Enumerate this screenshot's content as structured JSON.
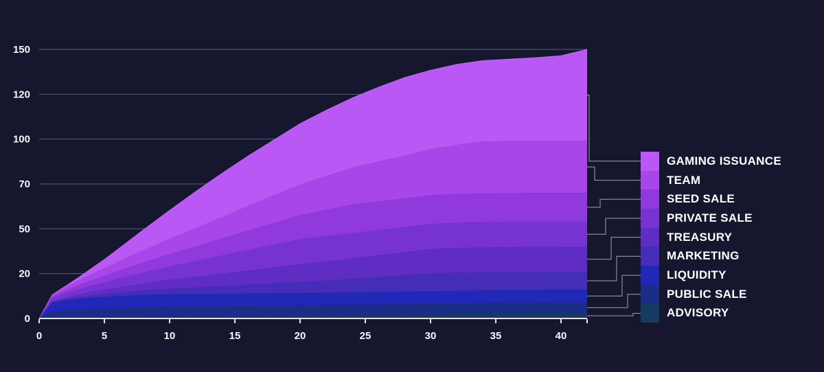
{
  "chart_data": {
    "type": "area",
    "stacked": true,
    "title": "",
    "xlabel": "",
    "ylabel": "",
    "ylim": [
      0,
      150
    ],
    "xlim": [
      0,
      42
    ],
    "grid": true,
    "legend_position": "right",
    "x": [
      0,
      1,
      2,
      3,
      4,
      5,
      6,
      8,
      10,
      12,
      14,
      16,
      18,
      20,
      22,
      24,
      26,
      28,
      30,
      32,
      34,
      36,
      38,
      40,
      42
    ],
    "x_tick_labels": [
      "0",
      "5",
      "10",
      "15",
      "20",
      "25",
      "30",
      "35",
      "40"
    ],
    "x_tick_values": [
      0,
      5,
      10,
      15,
      20,
      25,
      30,
      35,
      40
    ],
    "y_tick_labels_top_to_bottom": [
      "150",
      "120",
      "100",
      "70",
      "50",
      "20",
      "0"
    ],
    "series_bottom_to_top": [
      {
        "name": "ADVISORY",
        "color": "#173a63",
        "values": [
          0,
          0.05,
          0.1,
          0.15,
          0.2,
          0.25,
          0.3,
          0.4,
          0.5,
          0.6,
          0.7,
          0.85,
          1,
          1.15,
          1.3,
          1.5,
          1.7,
          1.9,
          2.1,
          2.35,
          2.6,
          2.8,
          2.9,
          3,
          3
        ]
      },
      {
        "name": "PUBLIC SALE",
        "color": "#1c2d87",
        "values": [
          0,
          3.6,
          4.2,
          4.6,
          4.9,
          5.1,
          5.3,
          5.7,
          6,
          6,
          6,
          6,
          6,
          6,
          6,
          6,
          6,
          6,
          6,
          6,
          6,
          6,
          6,
          6,
          6
        ]
      },
      {
        "name": "LIQUIDITY",
        "color": "#2127b7",
        "values": [
          0,
          5.2,
          5.7,
          6.1,
          6.4,
          6.6,
          6.8,
          7,
          7,
          7,
          7,
          7,
          7,
          7,
          7,
          7,
          7,
          7,
          7,
          7,
          7,
          7,
          7,
          7,
          7
        ]
      },
      {
        "name": "MARKETING",
        "color": "#452db8",
        "values": [
          0,
          0.3,
          0.6,
          0.9,
          1.2,
          1.5,
          1.8,
          2.4,
          3,
          3.6,
          4.2,
          4.8,
          5.4,
          6,
          6.7,
          7.5,
          8.3,
          9.1,
          10,
          10,
          10,
          10,
          10,
          10,
          10
        ]
      },
      {
        "name": "TREASURY",
        "color": "#5f2cc4",
        "values": [
          0,
          0.5,
          1,
          1.5,
          2,
          2.5,
          3,
          4,
          5,
          6,
          7,
          8,
          9,
          10,
          10.8,
          11.5,
          12.2,
          12.9,
          13.5,
          14,
          14,
          14,
          14,
          14,
          14
        ]
      },
      {
        "name": "PRIVATE SALE",
        "color": "#7733d1",
        "values": [
          0,
          1.5,
          2.2,
          2.8,
          3.5,
          4.1,
          4.8,
          6.1,
          7.4,
          8.7,
          10.1,
          11.4,
          12.7,
          14,
          14,
          14,
          14,
          14,
          14,
          14,
          14,
          14,
          14,
          14,
          14
        ]
      },
      {
        "name": "SEED SALE",
        "color": "#9039dd",
        "values": [
          0,
          1,
          1.7,
          2.3,
          3,
          3.6,
          4.3,
          5.6,
          6.9,
          8.2,
          9.5,
          10.8,
          12.1,
          13.4,
          14.7,
          16,
          16,
          16,
          16,
          16,
          16,
          16,
          16,
          16,
          16
        ]
      },
      {
        "name": "TEAM",
        "color": "#a846ea",
        "values": [
          0,
          0.85,
          1.7,
          2.6,
          3.4,
          4.3,
          5.1,
          6.8,
          8.5,
          10.2,
          11.9,
          13.7,
          15.4,
          17.1,
          18.8,
          20.5,
          22.2,
          23.9,
          25.6,
          27.3,
          29,
          29,
          29,
          29,
          29
        ]
      },
      {
        "name": "GAMING ISSUANCE",
        "color": "#b958f4",
        "values": [
          0,
          0.2,
          0.8,
          1.8,
          3.2,
          5,
          7,
          11.5,
          16,
          20.5,
          24.5,
          28,
          31,
          34,
          36.8,
          39,
          41.5,
          43.5,
          44.2,
          45,
          45.2,
          45.8,
          46.5,
          47.5,
          51
        ]
      }
    ],
    "legend_top_to_bottom": [
      "GAMING ISSUANCE",
      "TEAM",
      "SEED SALE",
      "PRIVATE SALE",
      "TREASURY",
      "MARKETING",
      "LIQUIDITY",
      "PUBLIC SALE",
      "ADVISORY"
    ]
  },
  "colors": {
    "background": "#16162e",
    "grid": "#9a9ab0",
    "axis_line": "#e3e3ee",
    "tick_label": "#f7f7fb",
    "legend_text": "#ffffff",
    "connector": "#b9b9cb",
    "area_top_edge": "#cfc6e8"
  }
}
